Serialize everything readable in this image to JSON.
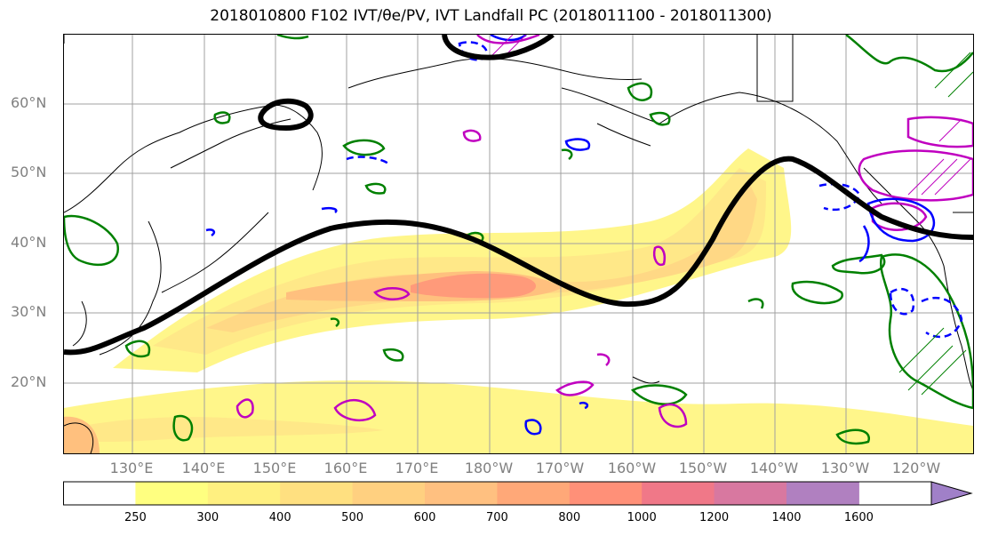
{
  "title": "2018010800 F102 IVT/θe/PV, IVT Landfall PC (2018011100 - 2018011300)",
  "latitude_labels": [
    "60°N",
    "50°N",
    "40°N",
    "30°N",
    "20°N"
  ],
  "longitude_labels": [
    "130°E",
    "140°E",
    "150°E",
    "160°E",
    "170°E",
    "180°W",
    "170°W",
    "160°W",
    "150°W",
    "140°W",
    "130°W",
    "120°W"
  ],
  "colorbar": {
    "ticks": [
      "250",
      "300",
      "400",
      "500",
      "600",
      "700",
      "800",
      "1000",
      "1200",
      "1400",
      "1600"
    ],
    "colors": [
      "#ffffff",
      "#ffff80",
      "#fff080",
      "#ffe080",
      "#ffd080",
      "#ffc080",
      "#ffa878",
      "#ff9078",
      "#f07888",
      "#d878a0",
      "#b080c0",
      "#a080c8"
    ]
  },
  "contour_colors": {
    "geopotential": "#000000",
    "pv": "#008000",
    "theta_e_positive": "#c000c0",
    "theta_e_negative": "#0000ff"
  }
}
